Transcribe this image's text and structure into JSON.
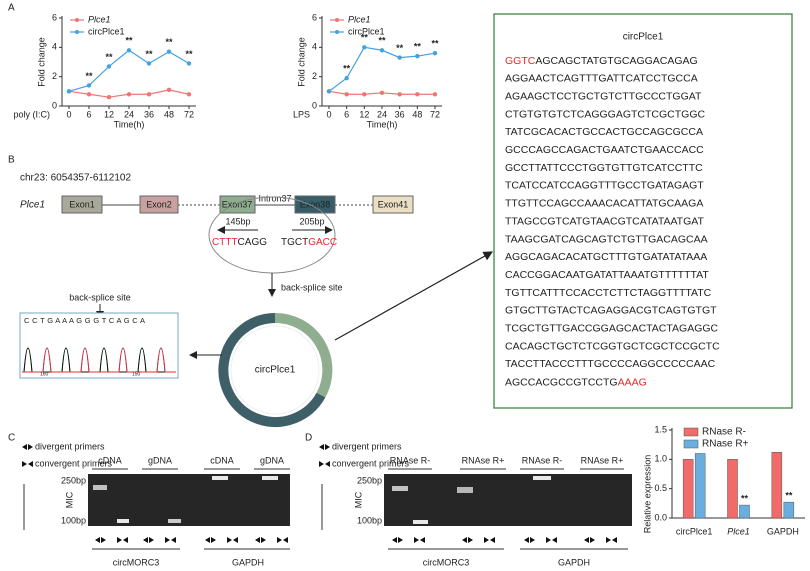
{
  "panels": [
    "A",
    "B",
    "C",
    "D"
  ],
  "chart_data": [
    {
      "type": "line",
      "ylabel": "Fold change",
      "xlabel": "Time(h)",
      "xprefix": "poly (I:C)",
      "categories": [
        "0",
        "6",
        "12",
        "24",
        "36",
        "48",
        "72"
      ],
      "ylim": [
        0,
        6
      ],
      "yticks": [
        0,
        2,
        4,
        6
      ],
      "series": [
        {
          "name": "Plce1",
          "color": "#f07474",
          "values": [
            1,
            0.8,
            0.6,
            0.8,
            0.8,
            1.1,
            0.8
          ]
        },
        {
          "name": "circPlce1",
          "color": "#45a2e0",
          "values": [
            1,
            1.4,
            2.7,
            3.8,
            2.9,
            3.7,
            2.9
          ],
          "significance": [
            null,
            "**",
            "**",
            "**",
            "**",
            "**",
            "**"
          ]
        }
      ]
    },
    {
      "type": "line",
      "ylabel": "Fold change",
      "xlabel": "Time(h)",
      "xprefix": "LPS",
      "categories": [
        "0",
        "6",
        "12",
        "24",
        "36",
        "48",
        "72"
      ],
      "ylim": [
        0,
        6
      ],
      "yticks": [
        0,
        2,
        4,
        6
      ],
      "series": [
        {
          "name": "Plce1",
          "color": "#f07474",
          "values": [
            1,
            0.8,
            0.8,
            0.9,
            0.8,
            0.8,
            0.8
          ]
        },
        {
          "name": "circPlce1",
          "color": "#45a2e0",
          "values": [
            1,
            1.9,
            4.0,
            3.8,
            3.3,
            3.4,
            3.6
          ],
          "significance": [
            null,
            "**",
            "**",
            "**",
            "**",
            "**",
            "**"
          ]
        }
      ]
    },
    {
      "type": "bar",
      "ylabel": "Relative expression",
      "categories": [
        "circPlce1",
        "Plce1",
        "GAPDH"
      ],
      "ylim": [
        0,
        1.5
      ],
      "yticks": [
        {
          "value": 0,
          "label": "0.0"
        },
        {
          "value": 0.5,
          "label": "0.5"
        },
        {
          "value": 1,
          "label": "1.0"
        },
        {
          "value": 1.5,
          "label": "1.5"
        }
      ],
      "series": [
        {
          "name": "RNase R-",
          "color": "#f26b6b",
          "values": [
            1.0,
            1.0,
            1.12
          ]
        },
        {
          "name": "RNase R+",
          "color": "#6aaee0",
          "values": [
            1.1,
            0.22,
            0.27
          ],
          "significance": [
            null,
            "**",
            "**"
          ]
        }
      ]
    }
  ],
  "sequence": {
    "title": "circPlce1",
    "first": [
      "GGTC",
      "AGCAGCTATGTGCAGGACAGAG"
    ],
    "lines": [
      "AGGAACTCAGTTTGATTCATCCTGCCA",
      "AGAAGCTCCTGCTGTCTTGCCCTGGAT",
      "CTGTGTGTCTCAGGGAGTCTCGCTGGC",
      "TATCGCACACTGCCACTGCCAGCGCCA",
      "GCCCAGCCAGACTGAATCTGAACCACC",
      "GCCTTATTCCCTGGTGTTGTCATCCTTC",
      "TCATCCATCCAGGTTTGCCTGATAGAGT",
      "TTGTTCCAGCCAAACACATTATGCAAGA",
      "TTAGCCGTCATGTAACGTCATATAATGAT",
      "TAAGCGATCAGCAGTCTGTTGACAGCAA",
      "AGGCAGACACATGCTTTGTGATATATAAA",
      "CACCGGACAATGATATTAAATGTTTTTTAT",
      "TGTTCATTTCCACCTCTTCTAGGTTTTATC",
      "GTGCTTGTACTCAGAGGACGTCAGTGTGT",
      "TCGCTGTTGACCGGAGCACTACTAGAGGC",
      "CACAGCTGCTCTCGGTGCTCGCTCCGCTC",
      "TACCTTACCCTTTGCCCCAGGCCCCCAAC"
    ],
    "last": [
      "AGCCACGCCGTCCTG",
      "AAAG"
    ]
  },
  "gene": {
    "locus": "chr23:  6054357-6112102",
    "name": "Plce1",
    "exons": [
      "Exon1",
      "Exon2",
      "Exon37",
      "Exon38",
      "Exon41"
    ],
    "intron": "Intron37",
    "left_len": "145bp",
    "right_len": "205bp",
    "left_seq": [
      "CTTT",
      "CAGG"
    ],
    "right_seq": [
      "TGCT",
      "GACC"
    ],
    "back_splice": "back-splice site",
    "circ": "circPlce1",
    "chrom_label": "back-splice site",
    "bases": "C C T G A A A G G G T C A G C A",
    "chrom_axis": [
      "160",
      "150"
    ]
  },
  "gels": {
    "legend": [
      "divergent primers",
      "convergent primers"
    ],
    "side": "MIC",
    "markers": [
      "250bp",
      "100bp"
    ],
    "c_lanes": [
      "cDNA",
      "gDNA",
      "cDNA",
      "gDNA"
    ],
    "d_lanes": [
      "RNAse R-",
      "RNAse R+",
      "RNAse R-",
      "RNAse R+"
    ],
    "groups": [
      "circMORC3",
      "GAPDH"
    ]
  }
}
